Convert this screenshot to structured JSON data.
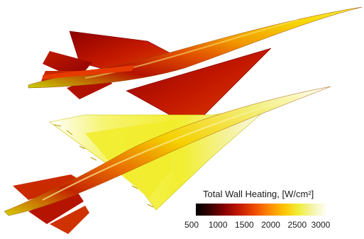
{
  "colorbar": {
    "title": "Total Wall Heating, [W/cm²]",
    "ticks": [
      "500",
      "1000",
      "1500",
      "2000",
      "2500",
      "3000"
    ],
    "range": [
      500,
      3000
    ],
    "colormap": [
      "#000000",
      "#3a0000",
      "#8a0000",
      "#c51b00",
      "#ee4a00",
      "#ff8a00",
      "#ffc400",
      "#f0ee3a",
      "#f4f4b0",
      "#ffffff"
    ]
  },
  "views": [
    "upper-vehicle",
    "lower-vehicle"
  ]
}
